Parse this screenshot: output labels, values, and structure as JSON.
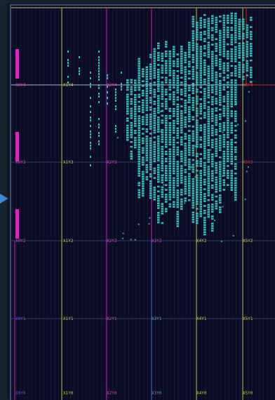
{
  "view": {
    "title": "",
    "colors": {
      "background": "#0b0c24",
      "placed_cells": "#2fbcb8",
      "magenta_region": "#e020c0",
      "yellow_region": "#d0d040",
      "red_region": "#c03020",
      "grid_minor": "#1c2a48",
      "clock_line": "#c8c070"
    }
  },
  "clock_region_labels": [
    {
      "text": "X0Y4",
      "color": "#d040c0"
    },
    {
      "text": "X1Y4",
      "color": "#c8c040"
    },
    {
      "text": "X2Y4",
      "color": "#d040c0"
    },
    {
      "text": "X5Y4",
      "color": "#d04020"
    },
    {
      "text": "X0Y3",
      "color": "#d040c0"
    },
    {
      "text": "X1Y3",
      "color": "#c8c040"
    },
    {
      "text": "X2Y3",
      "color": "#d040c0"
    },
    {
      "text": "X5Y3",
      "color": "#d04020"
    },
    {
      "text": "X0Y2",
      "color": "#d040c0"
    },
    {
      "text": "X1Y2",
      "color": "#c8c040"
    },
    {
      "text": "X2Y2",
      "color": "#d040c0"
    },
    {
      "text": "X3Y2",
      "color": "#d040c0"
    },
    {
      "text": "X4Y2",
      "color": "#c8c040"
    },
    {
      "text": "X5Y2",
      "color": "#c8c040"
    },
    {
      "text": "X0Y1",
      "color": "#8040d0"
    },
    {
      "text": "X1Y1",
      "color": "#c8c040"
    },
    {
      "text": "X2Y1",
      "color": "#d040c0"
    },
    {
      "text": "X3Y1",
      "color": "#5090d0"
    },
    {
      "text": "X4Y1",
      "color": "#c8c040"
    },
    {
      "text": "X5Y1",
      "color": "#c8c040"
    },
    {
      "text": "X0Y0",
      "color": "#8040d0"
    },
    {
      "text": "X1Y0",
      "color": "#c8c040"
    },
    {
      "text": "X2Y0",
      "color": "#d040c0"
    },
    {
      "text": "X3Y0",
      "color": "#5090d0"
    },
    {
      "text": "X4Y0",
      "color": "#c8c040"
    },
    {
      "text": "X5Y0",
      "color": "#c8c040"
    }
  ]
}
